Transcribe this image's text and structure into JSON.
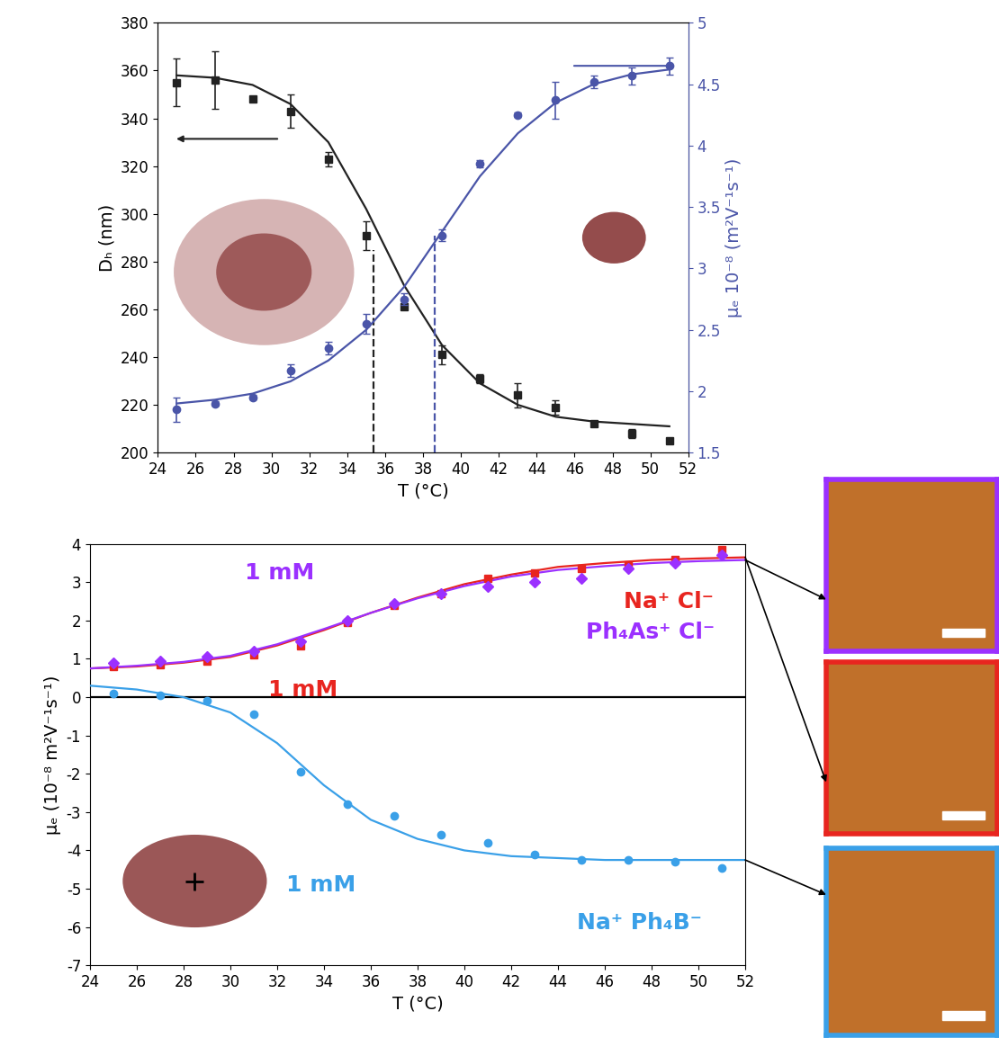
{
  "chart_data": [
    {
      "type": "line",
      "xlabel": "T (°C)",
      "ylabel": "Dₕ (nm)",
      "y2label": "μₑ 10⁻⁸ (m²V⁻¹s⁻¹)",
      "xlim": [
        24,
        52
      ],
      "xticks": [
        24,
        26,
        28,
        30,
        32,
        34,
        36,
        38,
        40,
        42,
        44,
        46,
        48,
        50,
        52
      ],
      "ylim": [
        200,
        380
      ],
      "yticks": [
        200,
        220,
        240,
        260,
        280,
        300,
        320,
        340,
        360,
        380
      ],
      "y2lim": [
        1.5,
        5
      ],
      "y2ticks": [
        1.5,
        2,
        2.5,
        3,
        3.5,
        4,
        4.5,
        5
      ],
      "series": [
        {
          "type": "scatter",
          "color": "#222222",
          "marker": "square",
          "x": [
            25,
            27,
            29,
            31,
            33,
            35,
            37,
            39,
            41,
            43,
            45,
            47,
            49,
            51
          ],
          "values": [
            355,
            356,
            348,
            343,
            323,
            291,
            261,
            241,
            231,
            224,
            219,
            212,
            208,
            205
          ],
          "errors": [
            10,
            12,
            1,
            7,
            3,
            6,
            1,
            4,
            2,
            5,
            3,
            1,
            2,
            1
          ]
        },
        {
          "type": "line",
          "color": "#222222",
          "line_style": "solid",
          "x": [
            25,
            27,
            29,
            31,
            33,
            35,
            37,
            39,
            41,
            43,
            45,
            47,
            49,
            51
          ],
          "values": [
            358,
            357,
            354,
            346,
            330,
            302,
            270,
            245,
            229,
            220,
            215,
            213,
            212,
            211
          ]
        },
        {
          "type": "line",
          "color": "#222222",
          "line_style": "dashed",
          "x": [
            35.4,
            35.4
          ],
          "values": [
            200,
            285
          ]
        },
        {
          "type": "scatter",
          "color": "#4a55a8",
          "marker": "circle",
          "axis": "y2",
          "x": [
            25,
            27,
            29,
            31,
            33,
            35,
            37,
            39,
            41,
            43,
            45,
            47,
            49,
            51
          ],
          "values": [
            1.85,
            1.9,
            1.95,
            2.17,
            2.35,
            2.55,
            2.75,
            3.27,
            3.85,
            4.25,
            4.37,
            4.52,
            4.57,
            4.65
          ],
          "errors": [
            0.1,
            0.02,
            0.02,
            0.05,
            0.05,
            0.08,
            0.05,
            0.05,
            0.03,
            0.02,
            0.15,
            0.05,
            0.07,
            0.07
          ]
        },
        {
          "type": "line",
          "color": "#4a55a8",
          "line_style": "solid",
          "axis": "y2",
          "x": [
            25,
            27,
            29,
            31,
            33,
            35,
            37,
            39,
            41,
            43,
            45,
            47,
            49,
            51
          ],
          "values": [
            1.9,
            1.93,
            1.98,
            2.08,
            2.25,
            2.5,
            2.85,
            3.3,
            3.75,
            4.1,
            4.35,
            4.5,
            4.58,
            4.62
          ]
        },
        {
          "type": "line",
          "color": "#4a55a8",
          "line_style": "dashed",
          "axis": "y2",
          "x": [
            38.6,
            38.6
          ],
          "values": [
            1.5,
            3.27
          ]
        }
      ]
    },
    {
      "type": "line",
      "xlabel": "T (°C)",
      "ylabel": "μₑ (10⁻⁸ m²V⁻¹s⁻¹)",
      "xlim": [
        24,
        52
      ],
      "xticks": [
        24,
        26,
        28,
        30,
        32,
        34,
        36,
        38,
        40,
        42,
        44,
        46,
        48,
        50,
        52
      ],
      "ylim": [
        -7,
        4
      ],
      "yticks": [
        -7,
        -6,
        -5,
        -4,
        -3,
        -2,
        -1,
        0,
        1,
        2,
        3,
        4
      ],
      "annotations": [
        {
          "text": "1 mM",
          "color": "#9b30ff"
        },
        {
          "text": "1 mM",
          "color": "#e8251f"
        },
        {
          "text": "Na⁺ Cl⁻",
          "color": "#e8251f"
        },
        {
          "text": "Ph₄As⁺ Cl⁻",
          "color": "#9b30ff"
        },
        {
          "text": "1 mM",
          "color": "#3aa0e8"
        },
        {
          "text": "Na⁺ Ph₄B⁻",
          "color": "#3aa0e8"
        }
      ],
      "series": [
        {
          "type": "line",
          "color": "#000000",
          "line_style": "solid",
          "x": [
            24,
            52
          ],
          "values": [
            0,
            0
          ]
        },
        {
          "type": "scatter",
          "color": "#e8251f",
          "marker": "square",
          "x": [
            25,
            27,
            29,
            31,
            33,
            35,
            37,
            39,
            41,
            43,
            45,
            47,
            49,
            51
          ],
          "values": [
            0.8,
            0.85,
            0.95,
            1.1,
            1.35,
            1.95,
            2.4,
            2.7,
            3.1,
            3.25,
            3.35,
            3.45,
            3.6,
            3.85
          ]
        },
        {
          "type": "line",
          "color": "#e8251f",
          "line_style": "solid",
          "x": [
            24,
            26,
            28,
            30,
            32,
            34,
            36,
            38,
            40,
            42,
            44,
            46,
            48,
            50,
            52
          ],
          "values": [
            0.75,
            0.8,
            0.9,
            1.05,
            1.35,
            1.75,
            2.2,
            2.6,
            2.95,
            3.2,
            3.4,
            3.5,
            3.58,
            3.62,
            3.65
          ]
        },
        {
          "type": "scatter",
          "color": "#9b30ff",
          "marker": "diamond",
          "x": [
            25,
            27,
            29,
            31,
            33,
            35,
            37,
            39,
            41,
            43,
            45,
            47,
            49,
            51
          ],
          "values": [
            0.9,
            0.95,
            1.05,
            1.2,
            1.45,
            2.0,
            2.45,
            2.7,
            2.9,
            3.0,
            3.1,
            3.35,
            3.5,
            3.7
          ]
        },
        {
          "type": "line",
          "color": "#9b30ff",
          "line_style": "solid",
          "x": [
            24,
            26,
            28,
            30,
            32,
            34,
            36,
            38,
            40,
            42,
            44,
            46,
            48,
            50,
            52
          ],
          "values": [
            0.75,
            0.82,
            0.92,
            1.08,
            1.38,
            1.78,
            2.2,
            2.58,
            2.9,
            3.15,
            3.32,
            3.42,
            3.5,
            3.55,
            3.58
          ]
        },
        {
          "type": "scatter",
          "color": "#3aa0e8",
          "marker": "circle",
          "x": [
            25,
            27,
            29,
            31,
            33,
            35,
            37,
            39,
            41,
            43,
            45,
            47,
            49,
            51
          ],
          "values": [
            0.1,
            0.05,
            -0.1,
            -0.45,
            -1.95,
            -2.8,
            -3.1,
            -3.6,
            -3.8,
            -4.1,
            -4.25,
            -4.25,
            -4.3,
            -4.45
          ]
        },
        {
          "type": "line",
          "color": "#3aa0e8",
          "line_style": "solid",
          "x": [
            24,
            26,
            28,
            30,
            32,
            34,
            36,
            38,
            40,
            42,
            44,
            46,
            48,
            50,
            52
          ],
          "values": [
            0.3,
            0.2,
            0.0,
            -0.4,
            -1.2,
            -2.3,
            -3.2,
            -3.7,
            -4.0,
            -4.15,
            -4.2,
            -4.25,
            -4.25,
            -4.25,
            -4.25
          ]
        }
      ]
    }
  ]
}
